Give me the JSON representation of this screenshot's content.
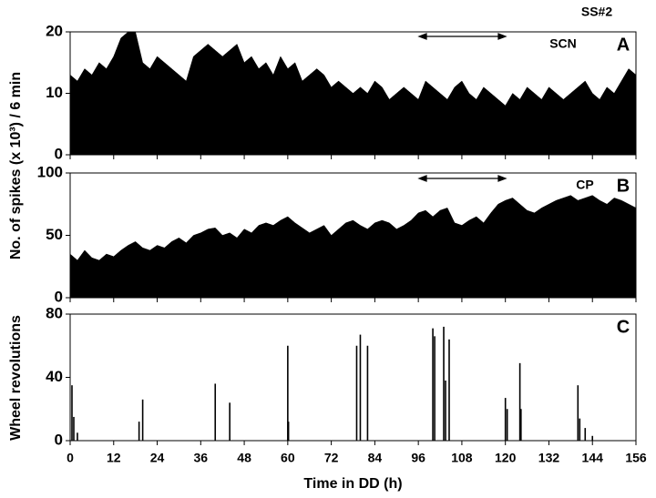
{
  "corner_label": "SS#2",
  "chart_data": [
    {
      "type": "area",
      "label": "SCN",
      "panel": "A",
      "ylabel": "No. of spikes (x 10³) / 6 min",
      "color": "#000000",
      "x": [
        0,
        2,
        4,
        6,
        8,
        10,
        12,
        14,
        16,
        18,
        20,
        22,
        24,
        26,
        28,
        30,
        32,
        34,
        36,
        38,
        40,
        42,
        44,
        46,
        48,
        50,
        52,
        54,
        56,
        58,
        60,
        62,
        64,
        66,
        68,
        70,
        72,
        74,
        76,
        78,
        80,
        82,
        84,
        86,
        88,
        90,
        92,
        94,
        96,
        98,
        100,
        102,
        104,
        106,
        108,
        110,
        112,
        114,
        116,
        118,
        120,
        122,
        124,
        126,
        128,
        130,
        132,
        134,
        136,
        138,
        140,
        142,
        144,
        146,
        148,
        150,
        152,
        154,
        156
      ],
      "values": [
        13,
        12,
        14,
        13,
        15,
        14,
        16,
        19,
        20,
        20,
        15,
        14,
        16,
        15,
        14,
        13,
        12,
        16,
        17,
        18,
        17,
        16,
        17,
        18,
        15,
        16,
        14,
        15,
        13,
        16,
        14,
        15,
        12,
        13,
        14,
        13,
        11,
        12,
        11,
        10,
        11,
        10,
        12,
        11,
        9,
        10,
        11,
        10,
        9,
        12,
        11,
        10,
        9,
        11,
        12,
        10,
        9,
        11,
        10,
        9,
        8,
        10,
        9,
        11,
        10,
        9,
        11,
        10,
        9,
        10,
        11,
        12,
        10,
        9,
        11,
        10,
        12,
        14,
        13
      ],
      "xlim": [
        0,
        156
      ],
      "xticks": [
        0,
        12,
        24,
        36,
        48,
        60,
        72,
        84,
        96,
        108,
        120,
        132,
        144,
        156
      ],
      "ylim": [
        0,
        20
      ],
      "yticks": [
        0,
        10,
        20
      ]
    },
    {
      "type": "area",
      "label": "CP",
      "panel": "B",
      "color": "#000000",
      "x": [
        0,
        2,
        4,
        6,
        8,
        10,
        12,
        14,
        16,
        18,
        20,
        22,
        24,
        26,
        28,
        30,
        32,
        34,
        36,
        38,
        40,
        42,
        44,
        46,
        48,
        50,
        52,
        54,
        56,
        58,
        60,
        62,
        64,
        66,
        68,
        70,
        72,
        74,
        76,
        78,
        80,
        82,
        84,
        86,
        88,
        90,
        92,
        94,
        96,
        98,
        100,
        102,
        104,
        106,
        108,
        110,
        112,
        114,
        116,
        118,
        120,
        122,
        124,
        126,
        128,
        130,
        132,
        134,
        136,
        138,
        140,
        142,
        144,
        146,
        148,
        150,
        152,
        154,
        156
      ],
      "values": [
        35,
        30,
        38,
        32,
        30,
        35,
        33,
        38,
        42,
        45,
        40,
        38,
        42,
        40,
        45,
        48,
        44,
        50,
        52,
        55,
        56,
        50,
        52,
        48,
        55,
        52,
        58,
        60,
        58,
        62,
        65,
        60,
        56,
        52,
        55,
        58,
        50,
        55,
        60,
        62,
        58,
        55,
        60,
        62,
        60,
        55,
        58,
        62,
        68,
        70,
        65,
        70,
        72,
        60,
        58,
        62,
        65,
        60,
        68,
        75,
        78,
        80,
        75,
        70,
        68,
        72,
        75,
        78,
        80,
        82,
        78,
        80,
        82,
        78,
        75,
        80,
        78,
        75,
        72
      ],
      "xlim": [
        0,
        156
      ],
      "xticks": [
        0,
        12,
        24,
        36,
        48,
        60,
        72,
        84,
        96,
        108,
        120,
        132,
        144,
        156
      ],
      "ylim": [
        0,
        100
      ],
      "yticks": [
        0,
        50,
        100
      ]
    },
    {
      "type": "bar",
      "panel": "C",
      "ylabel": "Wheel revolutions",
      "xlabel": "Time in DD (h)",
      "color": "#000000",
      "x": [
        0.5,
        1,
        2,
        19,
        20,
        40,
        44,
        60,
        60.2,
        79,
        80,
        82,
        100,
        100.5,
        103,
        103.5,
        104.5,
        120,
        120.5,
        124,
        124.3,
        140,
        140.5,
        142,
        144
      ],
      "values": [
        35,
        15,
        5,
        12,
        26,
        36,
        24,
        60,
        12,
        60,
        67,
        60,
        71,
        66,
        72,
        38,
        64,
        27,
        20,
        49,
        20,
        35,
        14,
        8,
        3
      ],
      "xlim": [
        0,
        156
      ],
      "xticks": [
        0,
        12,
        24,
        36,
        48,
        60,
        72,
        84,
        96,
        108,
        120,
        132,
        144,
        156
      ],
      "ylim": [
        0,
        80
      ],
      "yticks": [
        0,
        40,
        80
      ]
    }
  ]
}
